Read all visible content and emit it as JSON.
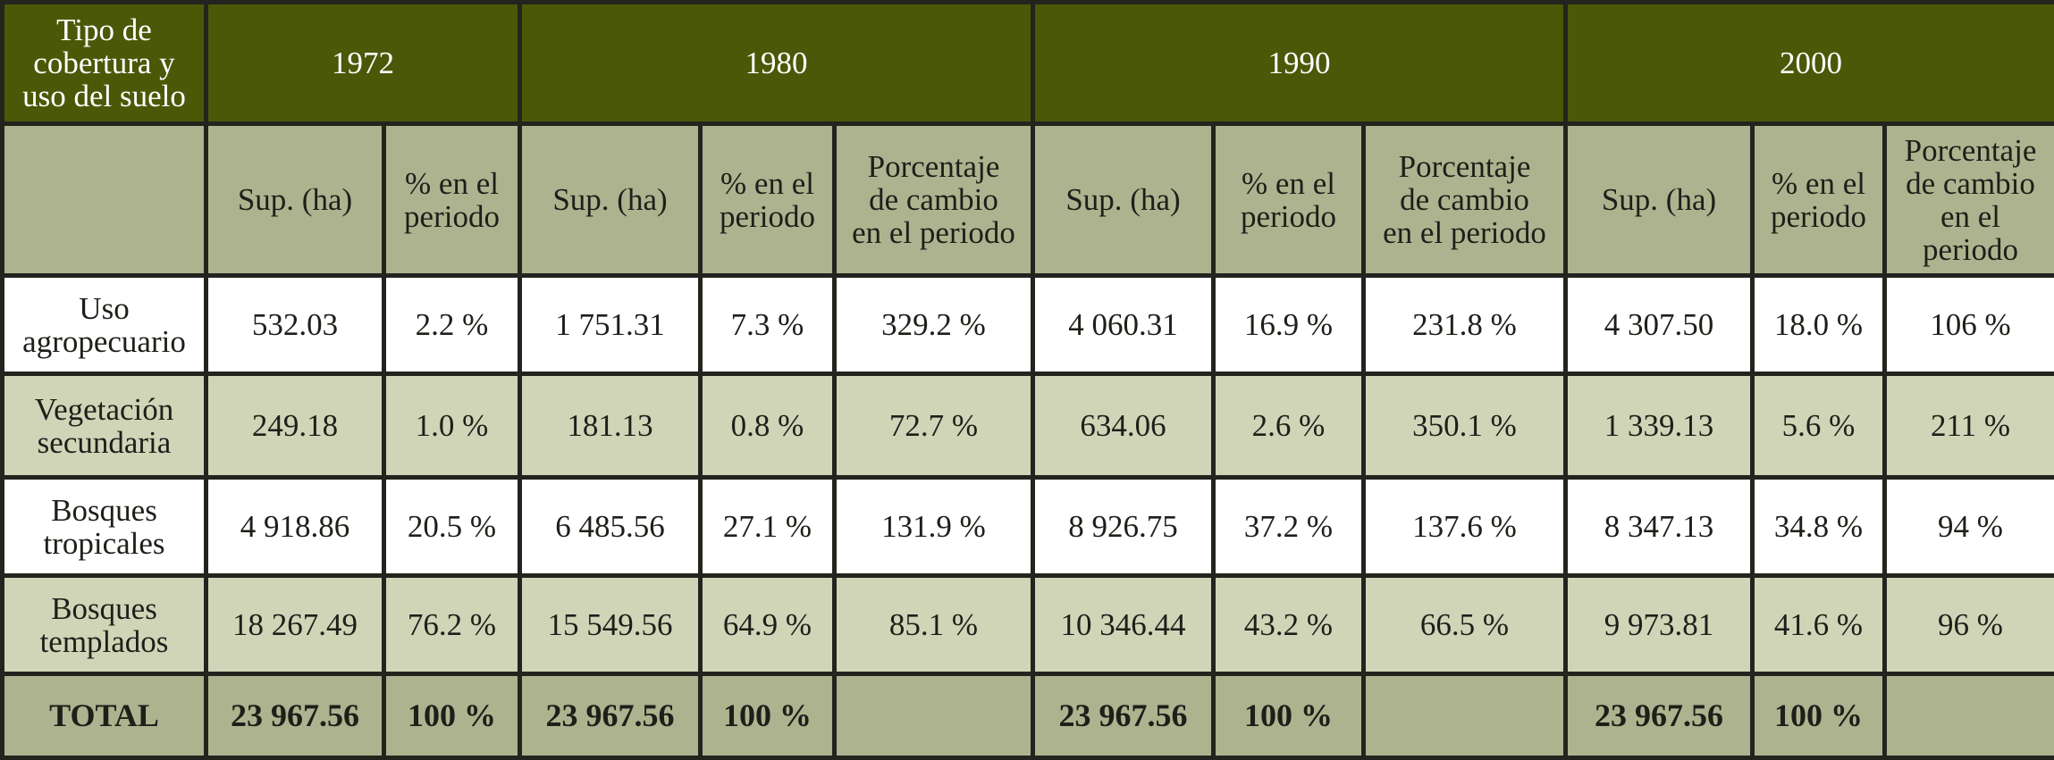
{
  "header": {
    "corner": "Tipo de\ncobertura y\nuso del suelo",
    "years": [
      "1972",
      "1980",
      "1990",
      "2000"
    ]
  },
  "subheaders": {
    "sup": "Sup. (ha)",
    "pct": "% en el\nperiodo",
    "change": "Porcentaje\nde cambio\nen el periodo",
    "change_2000": "Porcentaje\nde cambio\nen el\nperiodo"
  },
  "rows": [
    {
      "label": "Uso\nagropecuario",
      "y1972": {
        "sup": "532.03",
        "pct": "2.2 %"
      },
      "y1980": {
        "sup": "1 751.31",
        "pct": "7.3 %",
        "change": "329.2 %"
      },
      "y1990": {
        "sup": "4 060.31",
        "pct": "16.9 %",
        "change": "231.8 %"
      },
      "y2000": {
        "sup": "4 307.50",
        "pct": "18.0 %",
        "change": "106 %"
      }
    },
    {
      "label": "Vegetación\nsecundaria",
      "y1972": {
        "sup": "249.18",
        "pct": "1.0 %"
      },
      "y1980": {
        "sup": "181.13",
        "pct": "0.8 %",
        "change": "72.7 %"
      },
      "y1990": {
        "sup": "634.06",
        "pct": "2.6 %",
        "change": "350.1 %"
      },
      "y2000": {
        "sup": "1 339.13",
        "pct": "5.6 %",
        "change": "211 %"
      }
    },
    {
      "label": "Bosques\ntropicales",
      "y1972": {
        "sup": "4 918.86",
        "pct": "20.5 %"
      },
      "y1980": {
        "sup": "6 485.56",
        "pct": "27.1 %",
        "change": "131.9 %"
      },
      "y1990": {
        "sup": "8 926.75",
        "pct": "37.2 %",
        "change": "137.6 %"
      },
      "y2000": {
        "sup": "8 347.13",
        "pct": "34.8 %",
        "change": "94 %"
      }
    },
    {
      "label": "Bosques\ntemplados",
      "y1972": {
        "sup": "18 267.49",
        "pct": "76.2 %"
      },
      "y1980": {
        "sup": "15 549.56",
        "pct": "64.9 %",
        "change": "85.1 %"
      },
      "y1990": {
        "sup": "10 346.44",
        "pct": "43.2 %",
        "change": "66.5 %"
      },
      "y2000": {
        "sup": "9 973.81",
        "pct": "41.6 %",
        "change": "96 %"
      }
    }
  ],
  "total": {
    "label": "TOTAL",
    "y1972": {
      "sup": "23 967.56",
      "pct": "100 %"
    },
    "y1980": {
      "sup": "23 967.56",
      "pct": "100 %"
    },
    "y1990": {
      "sup": "23 967.56",
      "pct": "100 %"
    },
    "y2000": {
      "sup": "23 967.56",
      "pct": "100 %"
    }
  },
  "colors": {
    "header_bg": "#4b5808",
    "subheader_bg": "#aeb38f",
    "row_tint_bg": "#d0d5b8",
    "row_white_bg": "#ffffff",
    "border": "#23241e"
  }
}
